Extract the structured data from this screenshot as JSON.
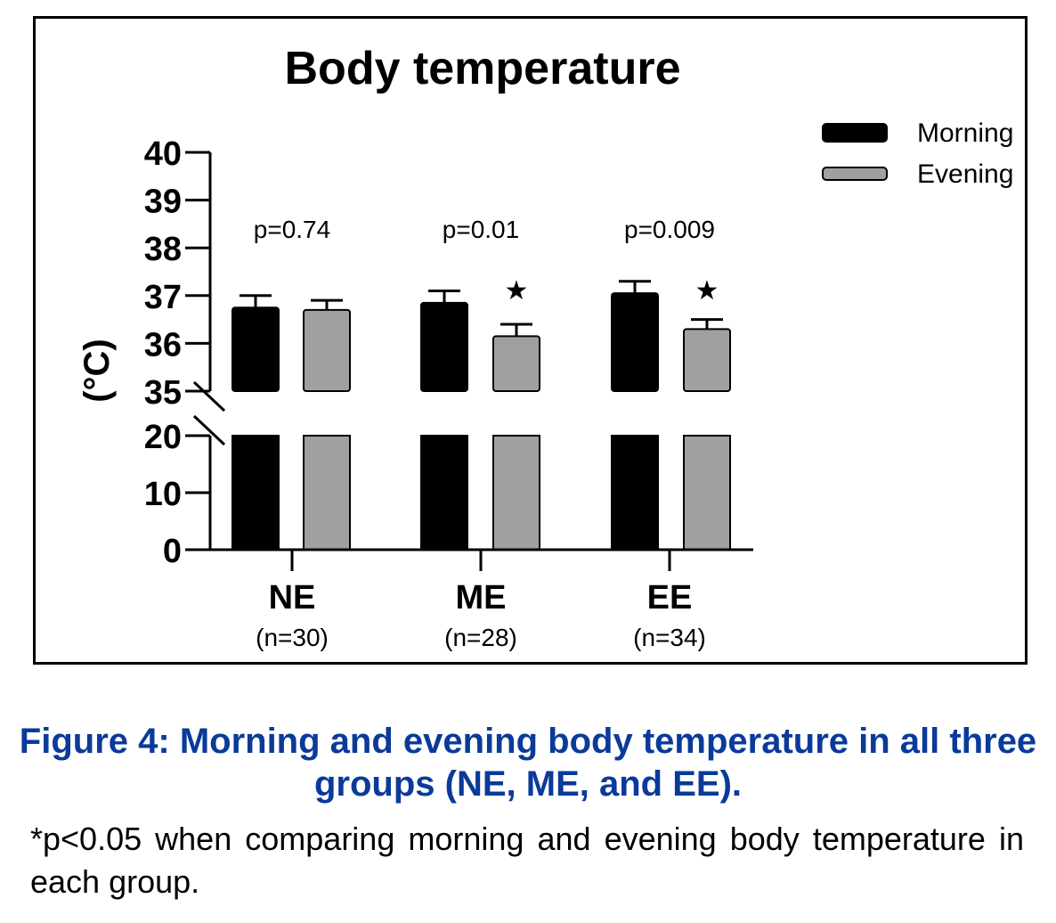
{
  "chart_data": {
    "type": "bar",
    "title": "Body temperature",
    "ylabel": "(°C)",
    "categories": [
      {
        "label": "NE",
        "n": "(n=30)"
      },
      {
        "label": "ME",
        "n": "(n=28)"
      },
      {
        "label": "EE",
        "n": "(n=34)"
      }
    ],
    "series": [
      {
        "name": "Morning",
        "color": "#000000",
        "values": [
          36.75,
          36.85,
          37.05
        ],
        "errors": [
          0.25,
          0.25,
          0.25
        ]
      },
      {
        "name": "Evening",
        "color": "#a0a0a0",
        "values": [
          36.7,
          36.15,
          36.3
        ],
        "errors": [
          0.2,
          0.25,
          0.2
        ]
      }
    ],
    "p_values": [
      "p=0.74",
      "p=0.01",
      "p=0.009"
    ],
    "significance": [
      false,
      true,
      true
    ],
    "significance_marker": "★",
    "y_axis": {
      "broken": true,
      "lower_segment": {
        "range": [
          0,
          20
        ],
        "ticks": [
          0,
          10,
          20
        ]
      },
      "upper_segment": {
        "range": [
          35,
          40
        ],
        "ticks": [
          35,
          36,
          37,
          38,
          39,
          40
        ]
      }
    },
    "legend_position": "top-right",
    "grid": false
  },
  "caption": {
    "text": "Figure 4: Morning and evening body temperature in all three groups (NE, ME, and EE).",
    "color": "#0a3a9a"
  },
  "note": "*p<0.05 when comparing morning and evening body temperature in each group."
}
